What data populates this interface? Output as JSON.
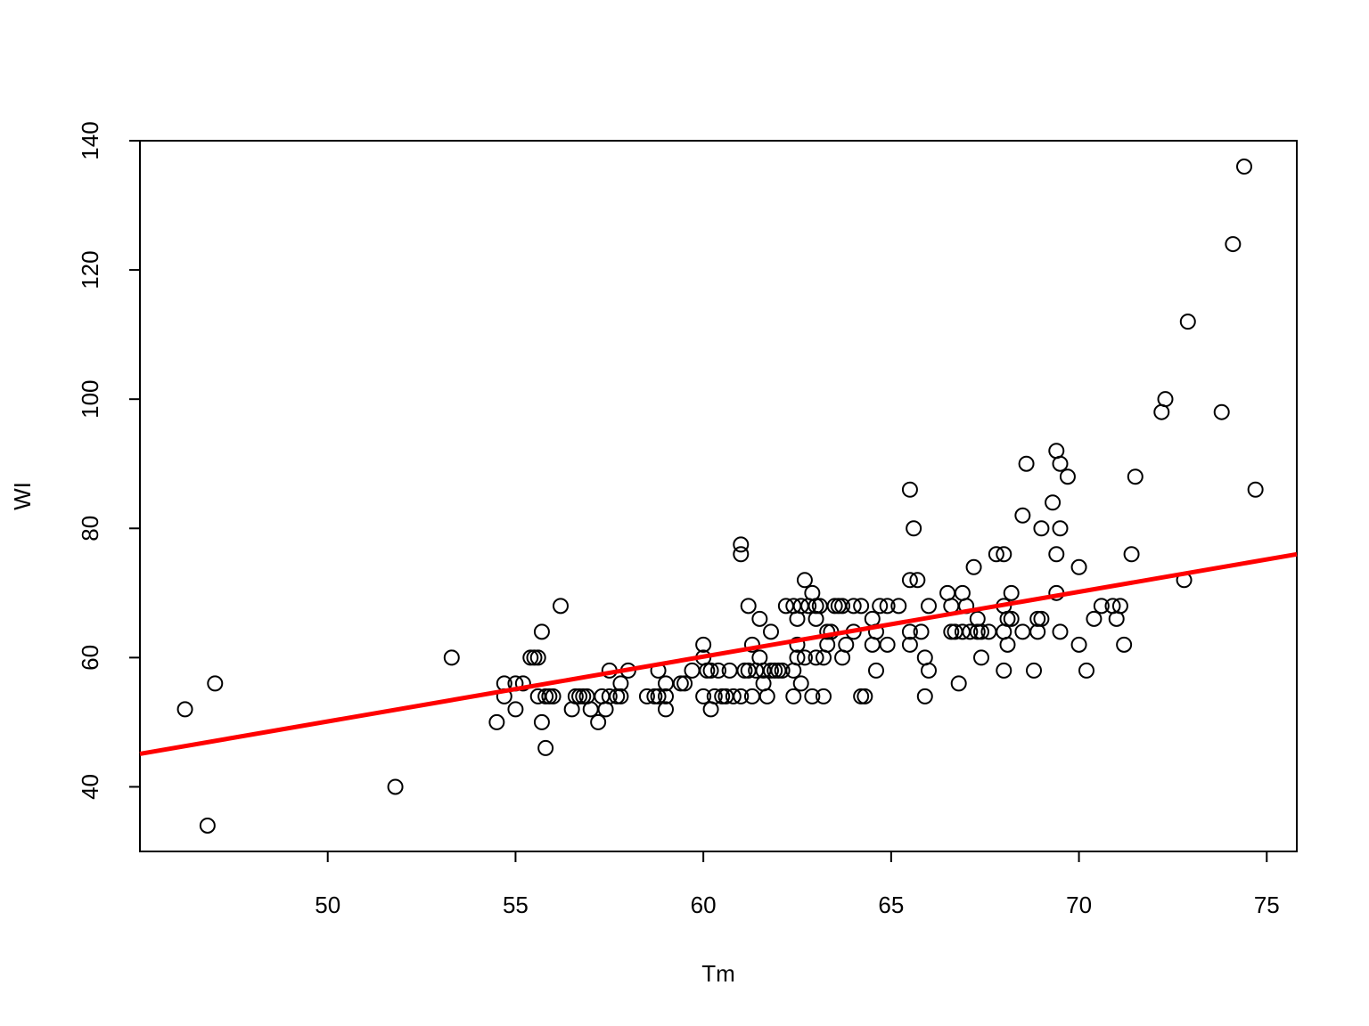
{
  "chart_data": {
    "type": "scatter",
    "x_label": "Tm",
    "y_label": "WI",
    "xlim": [
      45.0,
      75.8
    ],
    "ylim": [
      30,
      140
    ],
    "xticks": [
      50,
      55,
      60,
      65,
      70,
      75
    ],
    "yticks": [
      40,
      60,
      80,
      100,
      120,
      140
    ],
    "color": "#000000",
    "x": [
      46.2,
      46.8,
      47.0,
      51.8,
      53.3,
      54.5,
      54.7,
      54.7,
      55,
      55,
      55.2,
      55.4,
      55.5,
      55.6,
      55.6,
      55.7,
      55.7,
      55.8,
      55.8,
      55.9,
      56.0,
      56.2,
      56.5,
      56.6,
      56.7,
      56.8,
      56.9,
      57,
      57.2,
      57.3,
      57.4,
      57.5,
      57.5,
      57.7,
      57.8,
      57.8,
      58,
      58.5,
      58.7,
      58.8,
      58.8,
      59,
      59,
      59,
      59.4,
      59.5,
      59.7,
      60,
      60,
      60,
      60.1,
      60.2,
      60.2,
      60.3,
      60.4,
      60.5,
      60.6,
      60.7,
      60.8,
      61,
      61,
      61,
      61.1,
      61.2,
      61.2,
      61.3,
      61.3,
      61.4,
      61.5,
      61.5,
      61.6,
      61.6,
      61.7,
      61.8,
      61.8,
      61.9,
      62,
      62.1,
      62.2,
      62.4,
      62.4,
      62.4,
      62.5,
      62.5,
      62.5,
      62.6,
      62.6,
      62.7,
      62.7,
      62.8,
      62.9,
      62.9,
      63,
      63,
      63,
      63.1,
      63.2,
      63.2,
      63.3,
      63.3,
      63.4,
      63.5,
      63.6,
      63.7,
      63.7,
      63.8,
      64,
      64,
      64.2,
      64.2,
      64.3,
      64.5,
      64.5,
      64.6,
      64.6,
      64.7,
      64.9,
      64.9,
      65.2,
      65.5,
      65.5,
      65.5,
      65.5,
      65.6,
      65.7,
      65.8,
      65.9,
      65.9,
      66,
      66,
      66.5,
      66.6,
      66.6,
      66.7,
      66.8,
      66.9,
      66.9,
      67,
      67.1,
      67.2,
      67.3,
      67.3,
      67.4,
      67.4,
      67.6,
      67.8,
      68,
      68,
      68,
      68,
      68.1,
      68.1,
      68.2,
      68.2,
      68.5,
      68.5,
      68.6,
      68.8,
      68.9,
      68.9,
      69,
      69,
      69.3,
      69.4,
      69.4,
      69.4,
      69.5,
      69.5,
      69.5,
      69.7,
      70,
      70,
      70.2,
      70.4,
      70.6,
      70.9,
      71,
      71.1,
      71.2,
      71.4,
      71.5,
      72.2,
      72.3,
      72.8,
      72.9,
      73.8,
      74.1,
      74.4,
      74.7
    ],
    "values": [
      52,
      34,
      56,
      40,
      60,
      50,
      56,
      54,
      52,
      56,
      56,
      60,
      60,
      60,
      54,
      64,
      50,
      46,
      54,
      54,
      54,
      68,
      52,
      54,
      54,
      54,
      54,
      52,
      50,
      54,
      52,
      58,
      54,
      54,
      56,
      54,
      58,
      54,
      54,
      58,
      54,
      56,
      52,
      54,
      56,
      56,
      58,
      62,
      60,
      54,
      58,
      52,
      58,
      54,
      58,
      54,
      54,
      58,
      54,
      54,
      77.5,
      76,
      58,
      58,
      68,
      62,
      54,
      58,
      60,
      66,
      56,
      58,
      54,
      64,
      58,
      58,
      58,
      58,
      68,
      68,
      58,
      54,
      62,
      60,
      66,
      68,
      56,
      72,
      60,
      68,
      70,
      54,
      66,
      68,
      60,
      68,
      60,
      54,
      64,
      62,
      64,
      68,
      68,
      60,
      68,
      62,
      68,
      64,
      68,
      54,
      54,
      66,
      62,
      64,
      58,
      68,
      68,
      62,
      68,
      86,
      72,
      64,
      62,
      80,
      72,
      64,
      60,
      54,
      58,
      68,
      70,
      68,
      64,
      64,
      56,
      70,
      64,
      68,
      64,
      74,
      64,
      66,
      60,
      64,
      64,
      76,
      76,
      68,
      64,
      58,
      62,
      66,
      70,
      66,
      82,
      64,
      90,
      58,
      64,
      66,
      80,
      66,
      84,
      92,
      76,
      70,
      90,
      80,
      64,
      88,
      74,
      62,
      58,
      66,
      68,
      68,
      66,
      68,
      62,
      76,
      88,
      98,
      100,
      72,
      112,
      98,
      124,
      136,
      86
    ],
    "line": {
      "x": [
        45.0,
        75.8
      ],
      "values": [
        45.1,
        76.0
      ],
      "color": "#ff0000"
    }
  }
}
